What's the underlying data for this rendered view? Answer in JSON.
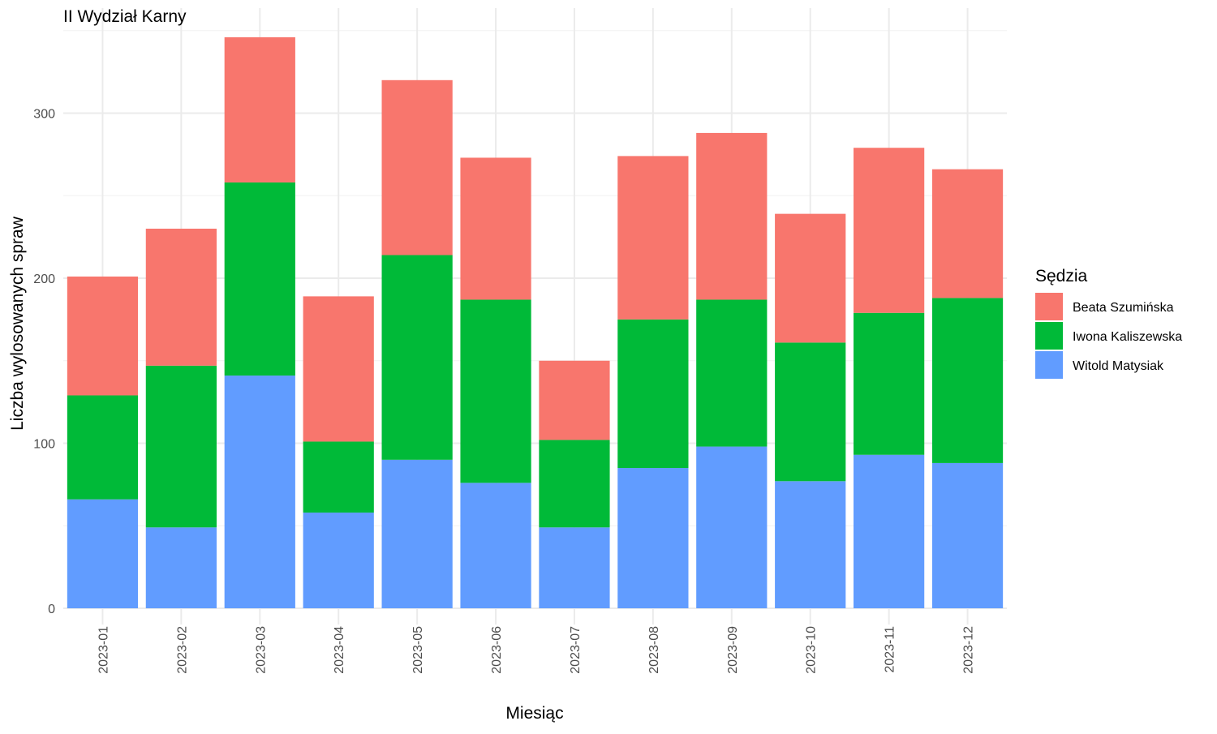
{
  "chart_data": {
    "type": "bar",
    "stacked": true,
    "title": "II Wydział Karny",
    "xlabel": "Miesiąc",
    "ylabel": "Liczba wylosowanych spraw",
    "ylim": [
      0,
      350
    ],
    "yticks": [
      0,
      100,
      200,
      300
    ],
    "grid": true,
    "legend": {
      "title": "Sędzia",
      "placement": "right"
    },
    "categories": [
      "2023-01",
      "2023-02",
      "2023-03",
      "2023-04",
      "2023-05",
      "2023-06",
      "2023-07",
      "2023-08",
      "2023-09",
      "2023-10",
      "2023-11",
      "2023-12"
    ],
    "series": [
      {
        "name": "Witold Matysiak",
        "color": "#619CFF",
        "values": [
          66,
          49,
          141,
          58,
          90,
          76,
          49,
          85,
          98,
          77,
          93,
          88
        ]
      },
      {
        "name": "Iwona Kaliszewska",
        "color": "#00BA38",
        "values": [
          63,
          98,
          117,
          43,
          124,
          111,
          53,
          90,
          89,
          84,
          86,
          100
        ]
      },
      {
        "name": "Beata Szumińska",
        "color": "#F8766D",
        "values": [
          72,
          83,
          88,
          88,
          106,
          86,
          48,
          99,
          101,
          78,
          100,
          78
        ]
      }
    ],
    "legend_order": [
      "Beata Szumińska",
      "Iwona Kaliszewska",
      "Witold Matysiak"
    ]
  }
}
